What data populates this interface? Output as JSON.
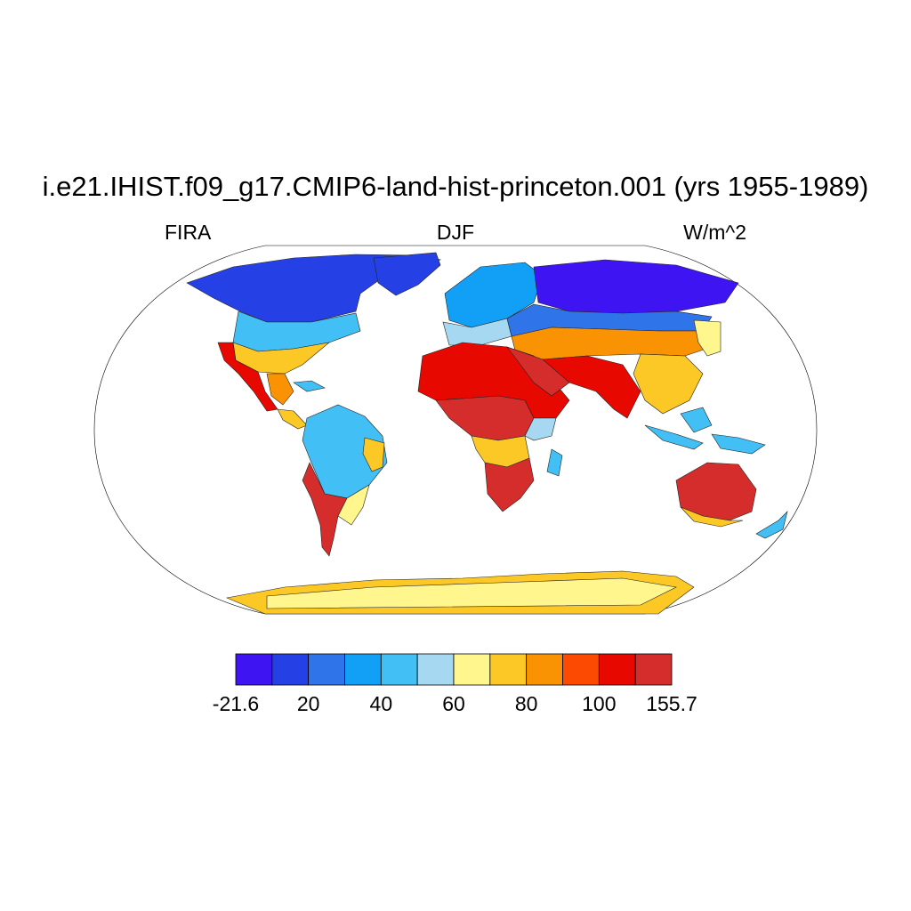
{
  "title": "i.e21.IHIST.f09_g17.CMIP6-land-hist-princeton.001 (yrs 1955-1989)",
  "subtitle_left": "FIRA",
  "subtitle_center": "DJF",
  "subtitle_right": "W/m^2",
  "colorbar": {
    "colors": [
      "#3f14f2",
      "#2541e6",
      "#2f74e8",
      "#12a0f6",
      "#42bff4",
      "#a6d8f2",
      "#fff68e",
      "#fcc825",
      "#fa9304",
      "#fc4a02",
      "#e70800",
      "#d42d2c"
    ],
    "labels": [
      {
        "text": "-21.6",
        "boundary": 0
      },
      {
        "text": "20",
        "boundary": 2
      },
      {
        "text": "40",
        "boundary": 4
      },
      {
        "text": "60",
        "boundary": 6
      },
      {
        "text": "80",
        "boundary": 8
      },
      {
        "text": "100",
        "boundary": 10
      },
      {
        "text": "155.7",
        "boundary": 12
      }
    ]
  }
}
